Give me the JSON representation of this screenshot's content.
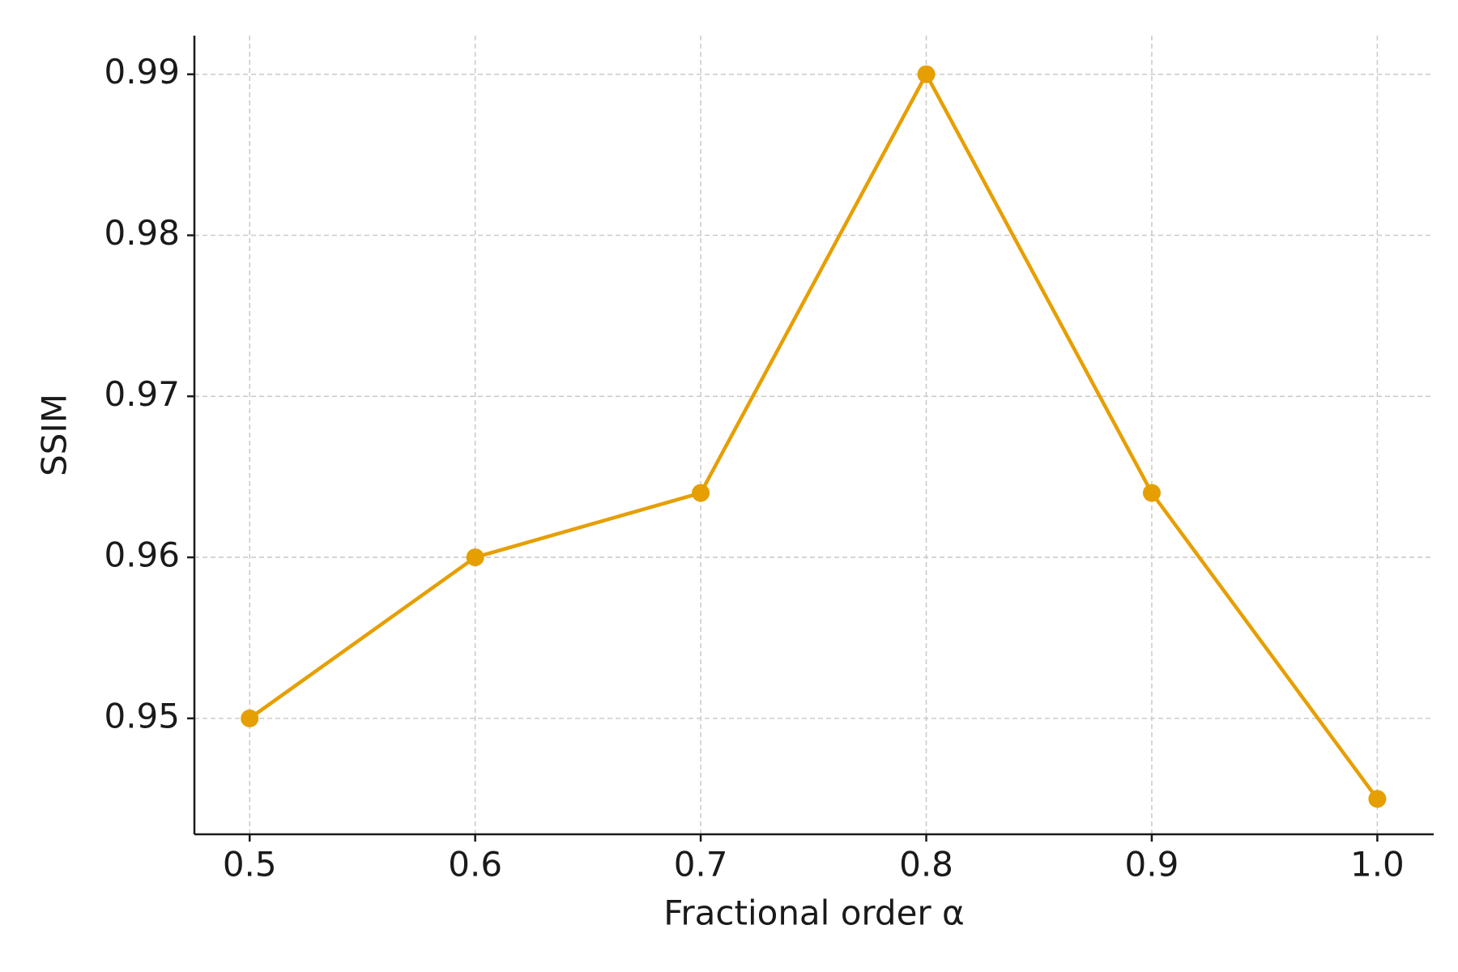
{
  "chart_data": {
    "type": "line",
    "x_label": "Fractional order α",
    "y_label": "SSIM",
    "x": [
      0.5,
      0.6,
      0.7,
      0.8,
      0.9,
      1.0
    ],
    "series": [
      {
        "color": "#e69f00",
        "values": [
          0.95,
          0.96,
          0.964,
          0.99,
          0.964,
          0.945
        ]
      }
    ],
    "xlim": [
      0.4755,
      1.025
    ],
    "ylim": [
      0.9428,
      0.9924
    ],
    "xticks": [
      0.5,
      0.6,
      0.7,
      0.8,
      0.9,
      {
        "value": 1.0,
        "label": "1.0"
      }
    ],
    "yticks": [
      0.95,
      0.96,
      0.97,
      0.98,
      0.99
    ],
    "grid": true
  }
}
